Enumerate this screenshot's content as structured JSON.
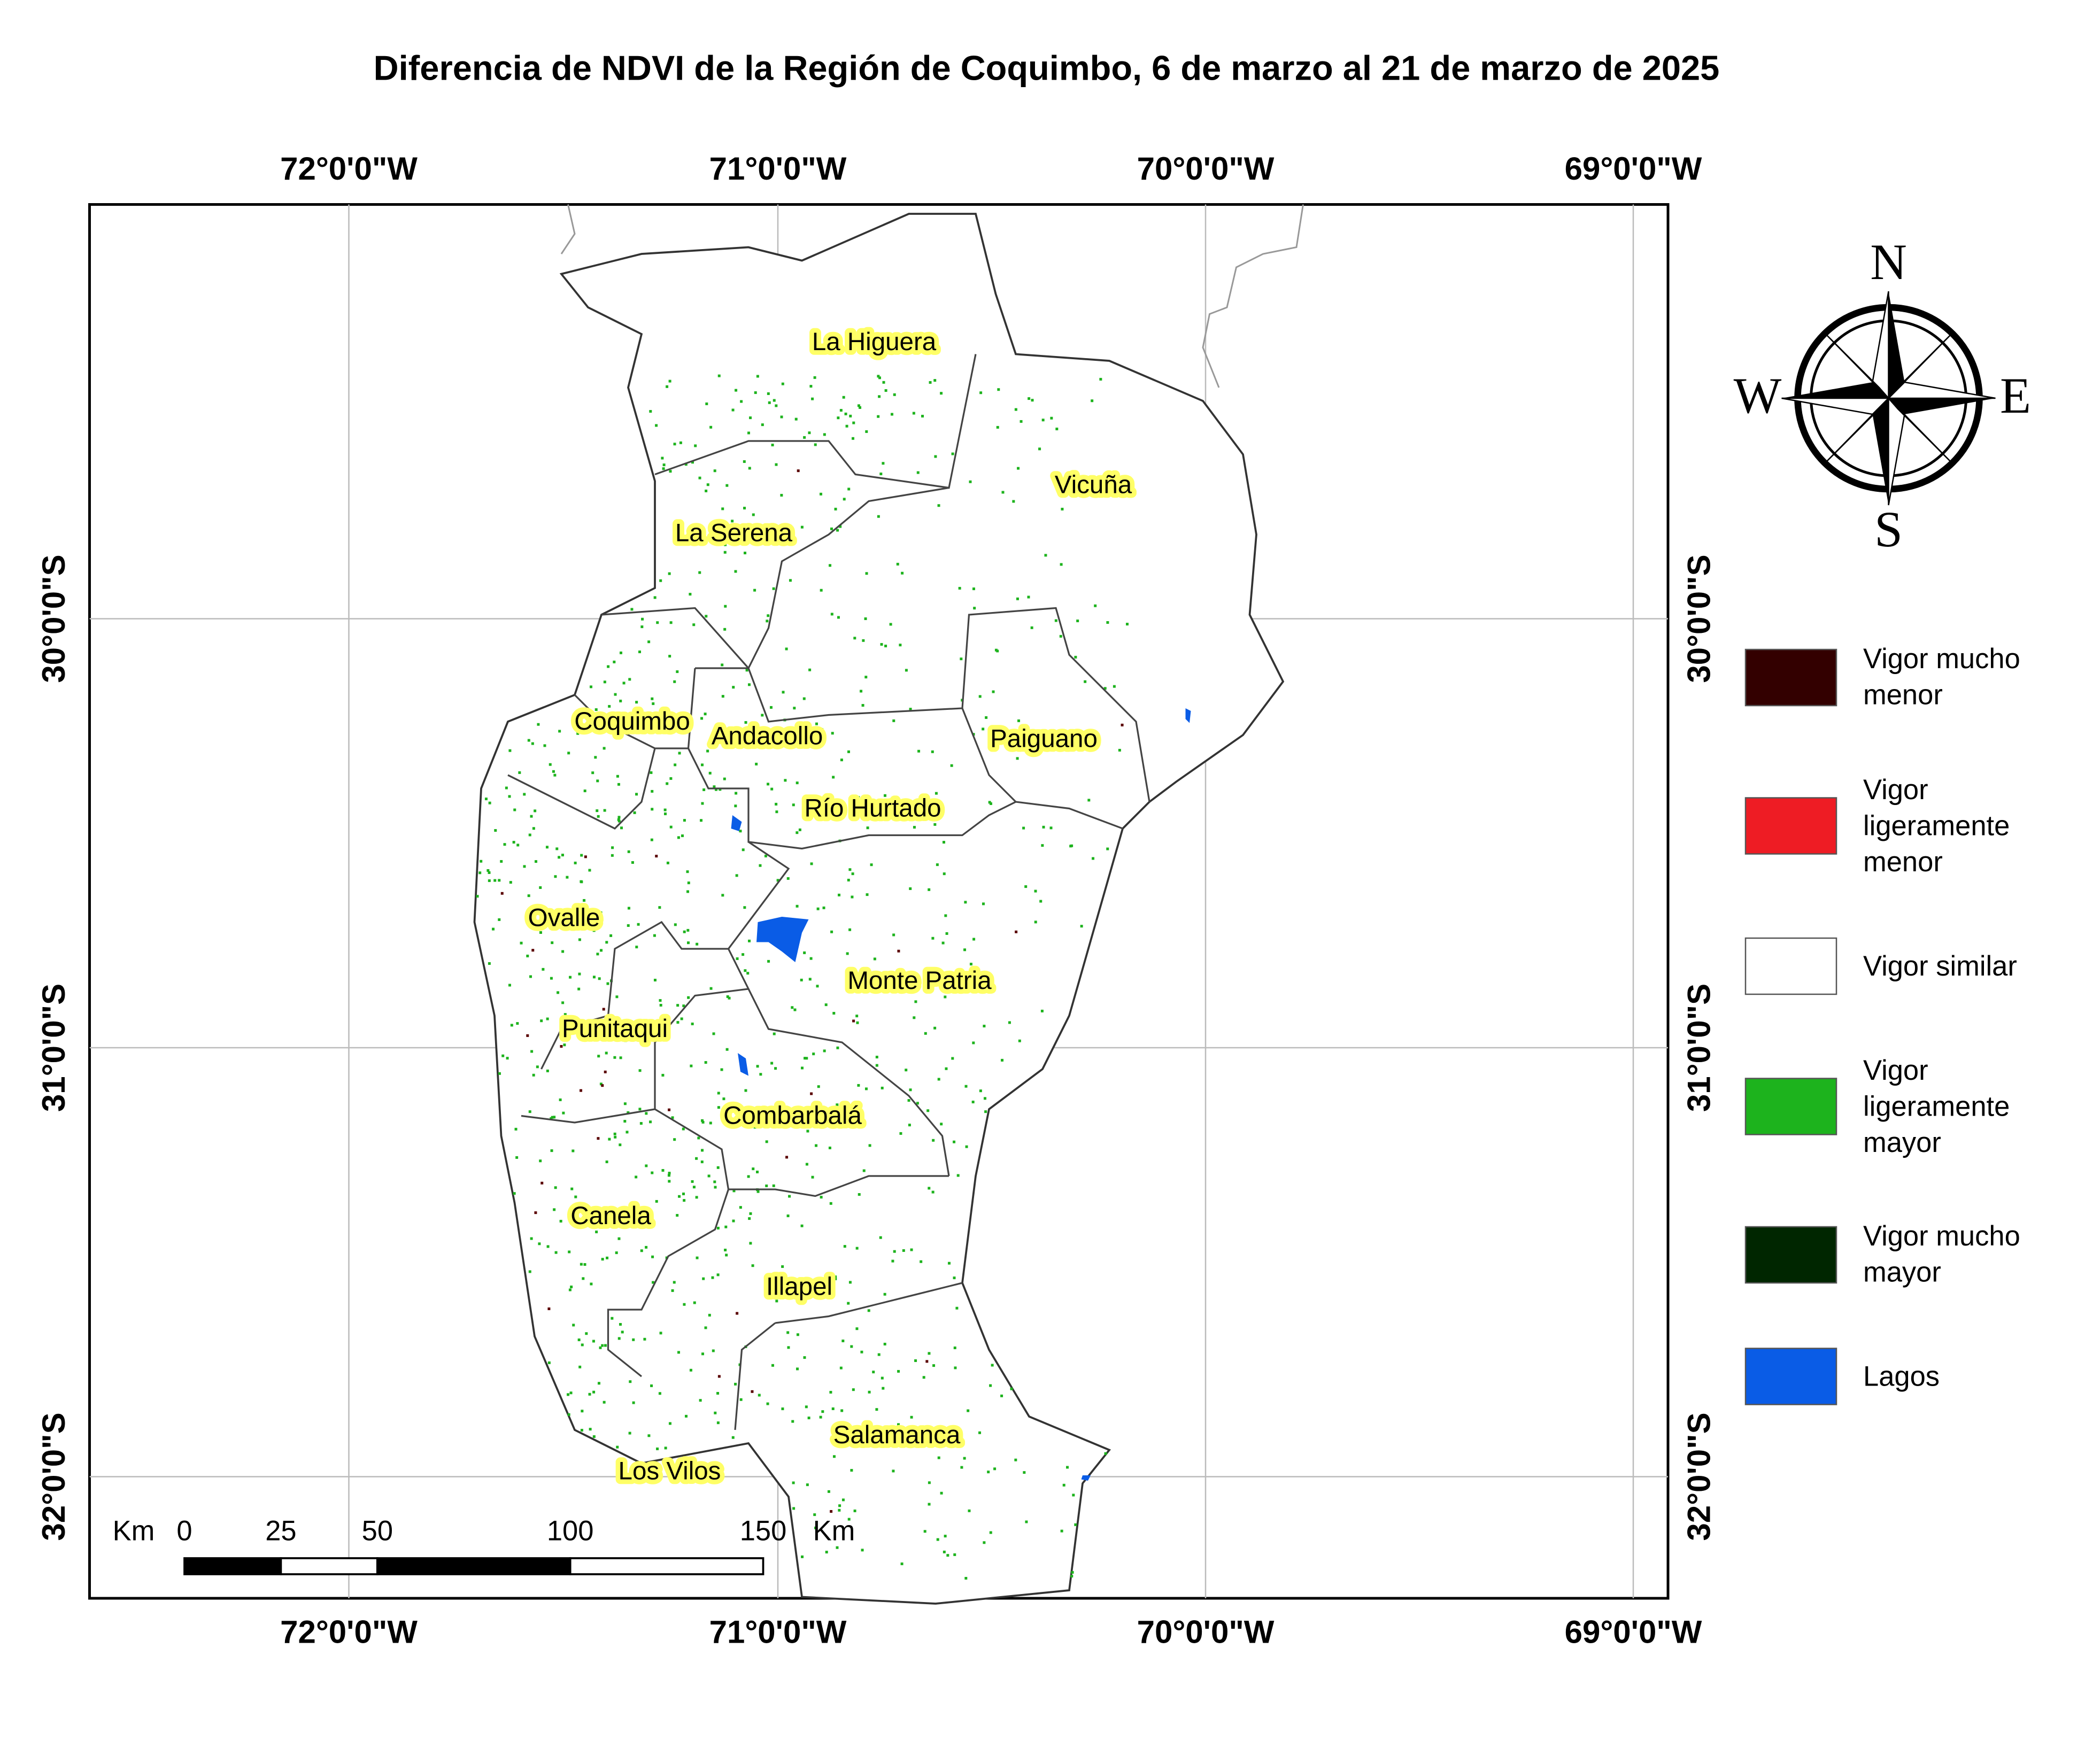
{
  "title": "Diferencia de NDVI de la Región de Coquimbo, 6 de marzo al 21 de marzo de 2025",
  "graticule": {
    "longitudes": [
      "72°0'0\"W",
      "71°0'0\"W",
      "70°0'0\"W",
      "69°0'0\"W"
    ],
    "latitudes": [
      "30°0'0\"S",
      "31°0'0\"S",
      "32°0'0\"S"
    ]
  },
  "communes": [
    "La Higuera",
    "Vicuña",
    "La Serena",
    "Coquimbo",
    "Andacollo",
    "Paiguano",
    "Río Hurtado",
    "Ovalle",
    "Monte Patria",
    "Punitaqui",
    "Combarbalá",
    "Canela",
    "Illapel",
    "Salamanca",
    "Los Vilos"
  ],
  "compass": {
    "n": "N",
    "s": "S",
    "e": "E",
    "w": "W"
  },
  "legend": [
    {
      "label": "Vigor mucho menor",
      "color": "#330000"
    },
    {
      "label": "Vigor ligeramente menor",
      "color": "#ee1c24"
    },
    {
      "label": "Vigor similar",
      "color": "#ffffff"
    },
    {
      "label": "Vigor ligeramente mayor",
      "color": "#1db31d"
    },
    {
      "label": "Vigor mucho mayor",
      "color": "#002600"
    },
    {
      "label": "Lagos",
      "color": "#0a5ce6"
    }
  ],
  "scale_bar": {
    "unit": "Km",
    "ticks": [
      0,
      25,
      50,
      100,
      150
    ]
  }
}
